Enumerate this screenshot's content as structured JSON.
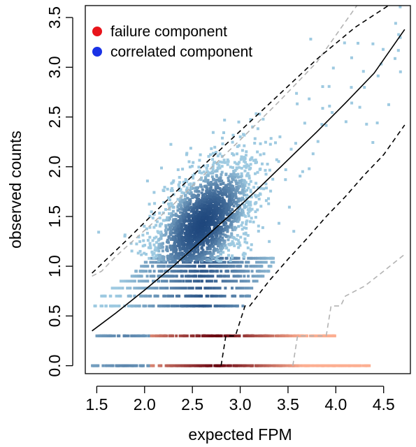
{
  "chart_data": {
    "type": "scatter",
    "title": "",
    "xlabel": "expected FPM",
    "ylabel": "observed counts",
    "xlim": [
      1.38,
      4.78
    ],
    "ylim": [
      -0.08,
      3.62
    ],
    "x_ticks": [
      "1.5",
      "2.0",
      "2.5",
      "3.0",
      "3.5",
      "4.0",
      "4.5"
    ],
    "y_ticks": [
      "0.0",
      "0.5",
      "1.0",
      "1.5",
      "2.0",
      "2.5",
      "3.0",
      "3.5"
    ],
    "grid": false,
    "legend_position": "top-left",
    "legend": [
      {
        "label": "failure component",
        "color": "#e8141b"
      },
      {
        "label": "correlated component",
        "color": "#1a32e6"
      }
    ],
    "colors": {
      "correlated_light": "#9ecae1",
      "correlated_dark": "#08306b",
      "failure_light": "#fcae91",
      "failure_dark": "#67000d",
      "fit_line": "#000000",
      "inner_band": "#000000",
      "outer_band": "#b3b3b3"
    },
    "fit_line": {
      "x": [
        1.45,
        1.7,
        2.0,
        2.3,
        2.6,
        2.9,
        3.2,
        3.5,
        3.8,
        4.1,
        4.4,
        4.72
      ],
      "y": [
        0.35,
        0.53,
        0.76,
        1.0,
        1.26,
        1.52,
        1.79,
        2.07,
        2.35,
        2.64,
        2.94,
        3.38
      ]
    },
    "inner_band_upper": {
      "x": [
        1.45,
        1.8,
        2.2,
        2.6,
        3.0,
        3.4,
        3.8,
        4.2,
        4.55
      ],
      "y": [
        0.93,
        1.25,
        1.63,
        2.0,
        2.36,
        2.72,
        3.08,
        3.4,
        3.62
      ]
    },
    "inner_band_lower": {
      "x": [
        2.8,
        2.85,
        2.95,
        3.05,
        3.1,
        3.3,
        3.5,
        3.7,
        3.9,
        4.1,
        4.3,
        4.5,
        4.72
      ],
      "y": [
        0.0,
        0.3,
        0.3,
        0.6,
        0.6,
        0.85,
        1.07,
        1.28,
        1.5,
        1.7,
        1.92,
        2.12,
        2.42
      ]
    },
    "outer_band_upper": {
      "x": [
        1.45,
        1.55,
        1.7,
        2.0,
        2.3,
        2.6,
        3.0,
        3.4,
        3.8,
        4.22
      ],
      "y": [
        0.9,
        0.95,
        1.1,
        1.36,
        1.62,
        1.9,
        2.27,
        2.65,
        3.05,
        3.62
      ]
    },
    "outer_band_lower": {
      "x": [
        3.55,
        3.6,
        3.9,
        3.95,
        4.0,
        4.05,
        4.1,
        4.3,
        4.5,
        4.72
      ],
      "y": [
        0.0,
        0.3,
        0.3,
        0.6,
        0.6,
        0.6,
        0.7,
        0.8,
        0.95,
        1.12
      ]
    },
    "baseline_rows": [
      {
        "y": 0.0,
        "x_range": [
          1.45,
          4.35
        ],
        "component": "mixed"
      },
      {
        "y": 0.3,
        "x_range": [
          1.5,
          4.0
        ],
        "component": "mixed"
      }
    ],
    "correlated_cloud": {
      "center": [
        2.6,
        1.42
      ],
      "spread": [
        0.28,
        0.35
      ],
      "n_points": 2400
    }
  }
}
